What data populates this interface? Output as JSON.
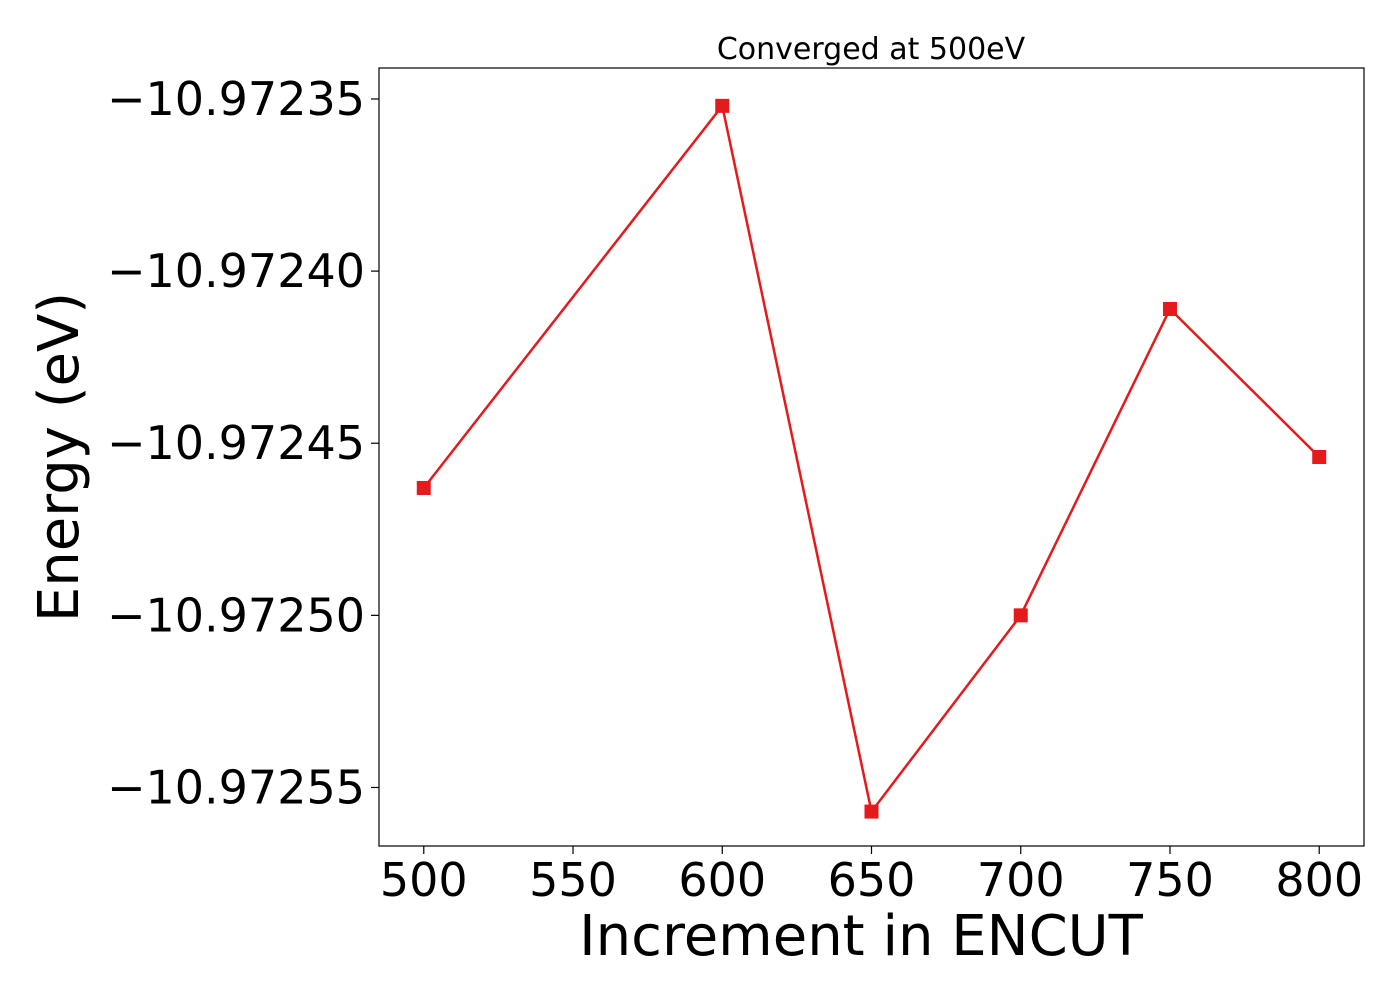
{
  "chart_data": {
    "type": "line",
    "title": "Converged at 500eV",
    "xlabel": "Increment in ENCUT",
    "ylabel": "Energy (eV)",
    "x": [
      500,
      600,
      650,
      700,
      750,
      800
    ],
    "series": [
      {
        "values": [
          -10.972463,
          -10.972352,
          -10.972557,
          -10.9725,
          -10.972411,
          -10.972454
        ],
        "color": "#e41a1c",
        "marker": "square"
      }
    ],
    "xticks": [
      500,
      550,
      600,
      650,
      700,
      750,
      800
    ],
    "xtick_labels": [
      "500",
      "550",
      "600",
      "650",
      "700",
      "750",
      "800"
    ],
    "yticks": [
      -10.97235,
      -10.9724,
      -10.97245,
      -10.9725,
      -10.97255
    ],
    "ytick_labels": [
      "−10.97235",
      "−10.97240",
      "−10.97245",
      "−10.97250",
      "−10.97255"
    ],
    "xlim": [
      485,
      815
    ],
    "ylim": [
      -10.972567,
      -10.972341
    ],
    "grid": false,
    "legend": "none"
  }
}
